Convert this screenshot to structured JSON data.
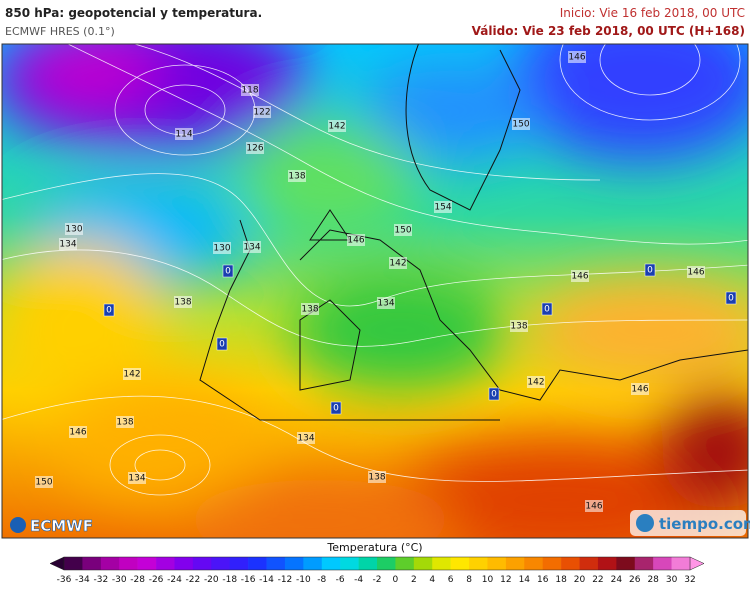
{
  "header": {
    "title": "850 hPa: geopotencial y temperatura.",
    "subtitle": "ECMWF HRES (0.1°)",
    "init": "Inicio: Vie 16 feb 2018, 00 UTC",
    "valid": "Válido: Vie 23 feb 2018, 00 UTC (H+168)"
  },
  "map": {
    "contour_labels": [
      "118",
      "122",
      "114",
      "126",
      "142",
      "138",
      "130",
      "134",
      "130",
      "134",
      "146",
      "150",
      "154",
      "142",
      "138",
      "134",
      "138",
      "146",
      "146",
      "138",
      "142",
      "146",
      "142",
      "138",
      "146",
      "134",
      "150",
      "134",
      "138",
      "146",
      "146",
      "150"
    ],
    "zero_labels": [
      "0",
      "0",
      "0",
      "0",
      "0",
      "0",
      "0",
      "0"
    ]
  },
  "logos": {
    "left": "ECMWF",
    "right": "tiempo.com"
  },
  "colorbar": {
    "title": "Temperatura (°C)",
    "ticks": [
      "-36",
      "-34",
      "-32",
      "-30",
      "-28",
      "-26",
      "-24",
      "-22",
      "-20",
      "-18",
      "-16",
      "-14",
      "-12",
      "-10",
      "-8",
      "-6",
      "-4",
      "-2",
      "0",
      "2",
      "4",
      "6",
      "8",
      "10",
      "12",
      "14",
      "16",
      "18",
      "20",
      "22",
      "24",
      "26",
      "28",
      "30",
      "32"
    ]
  }
}
